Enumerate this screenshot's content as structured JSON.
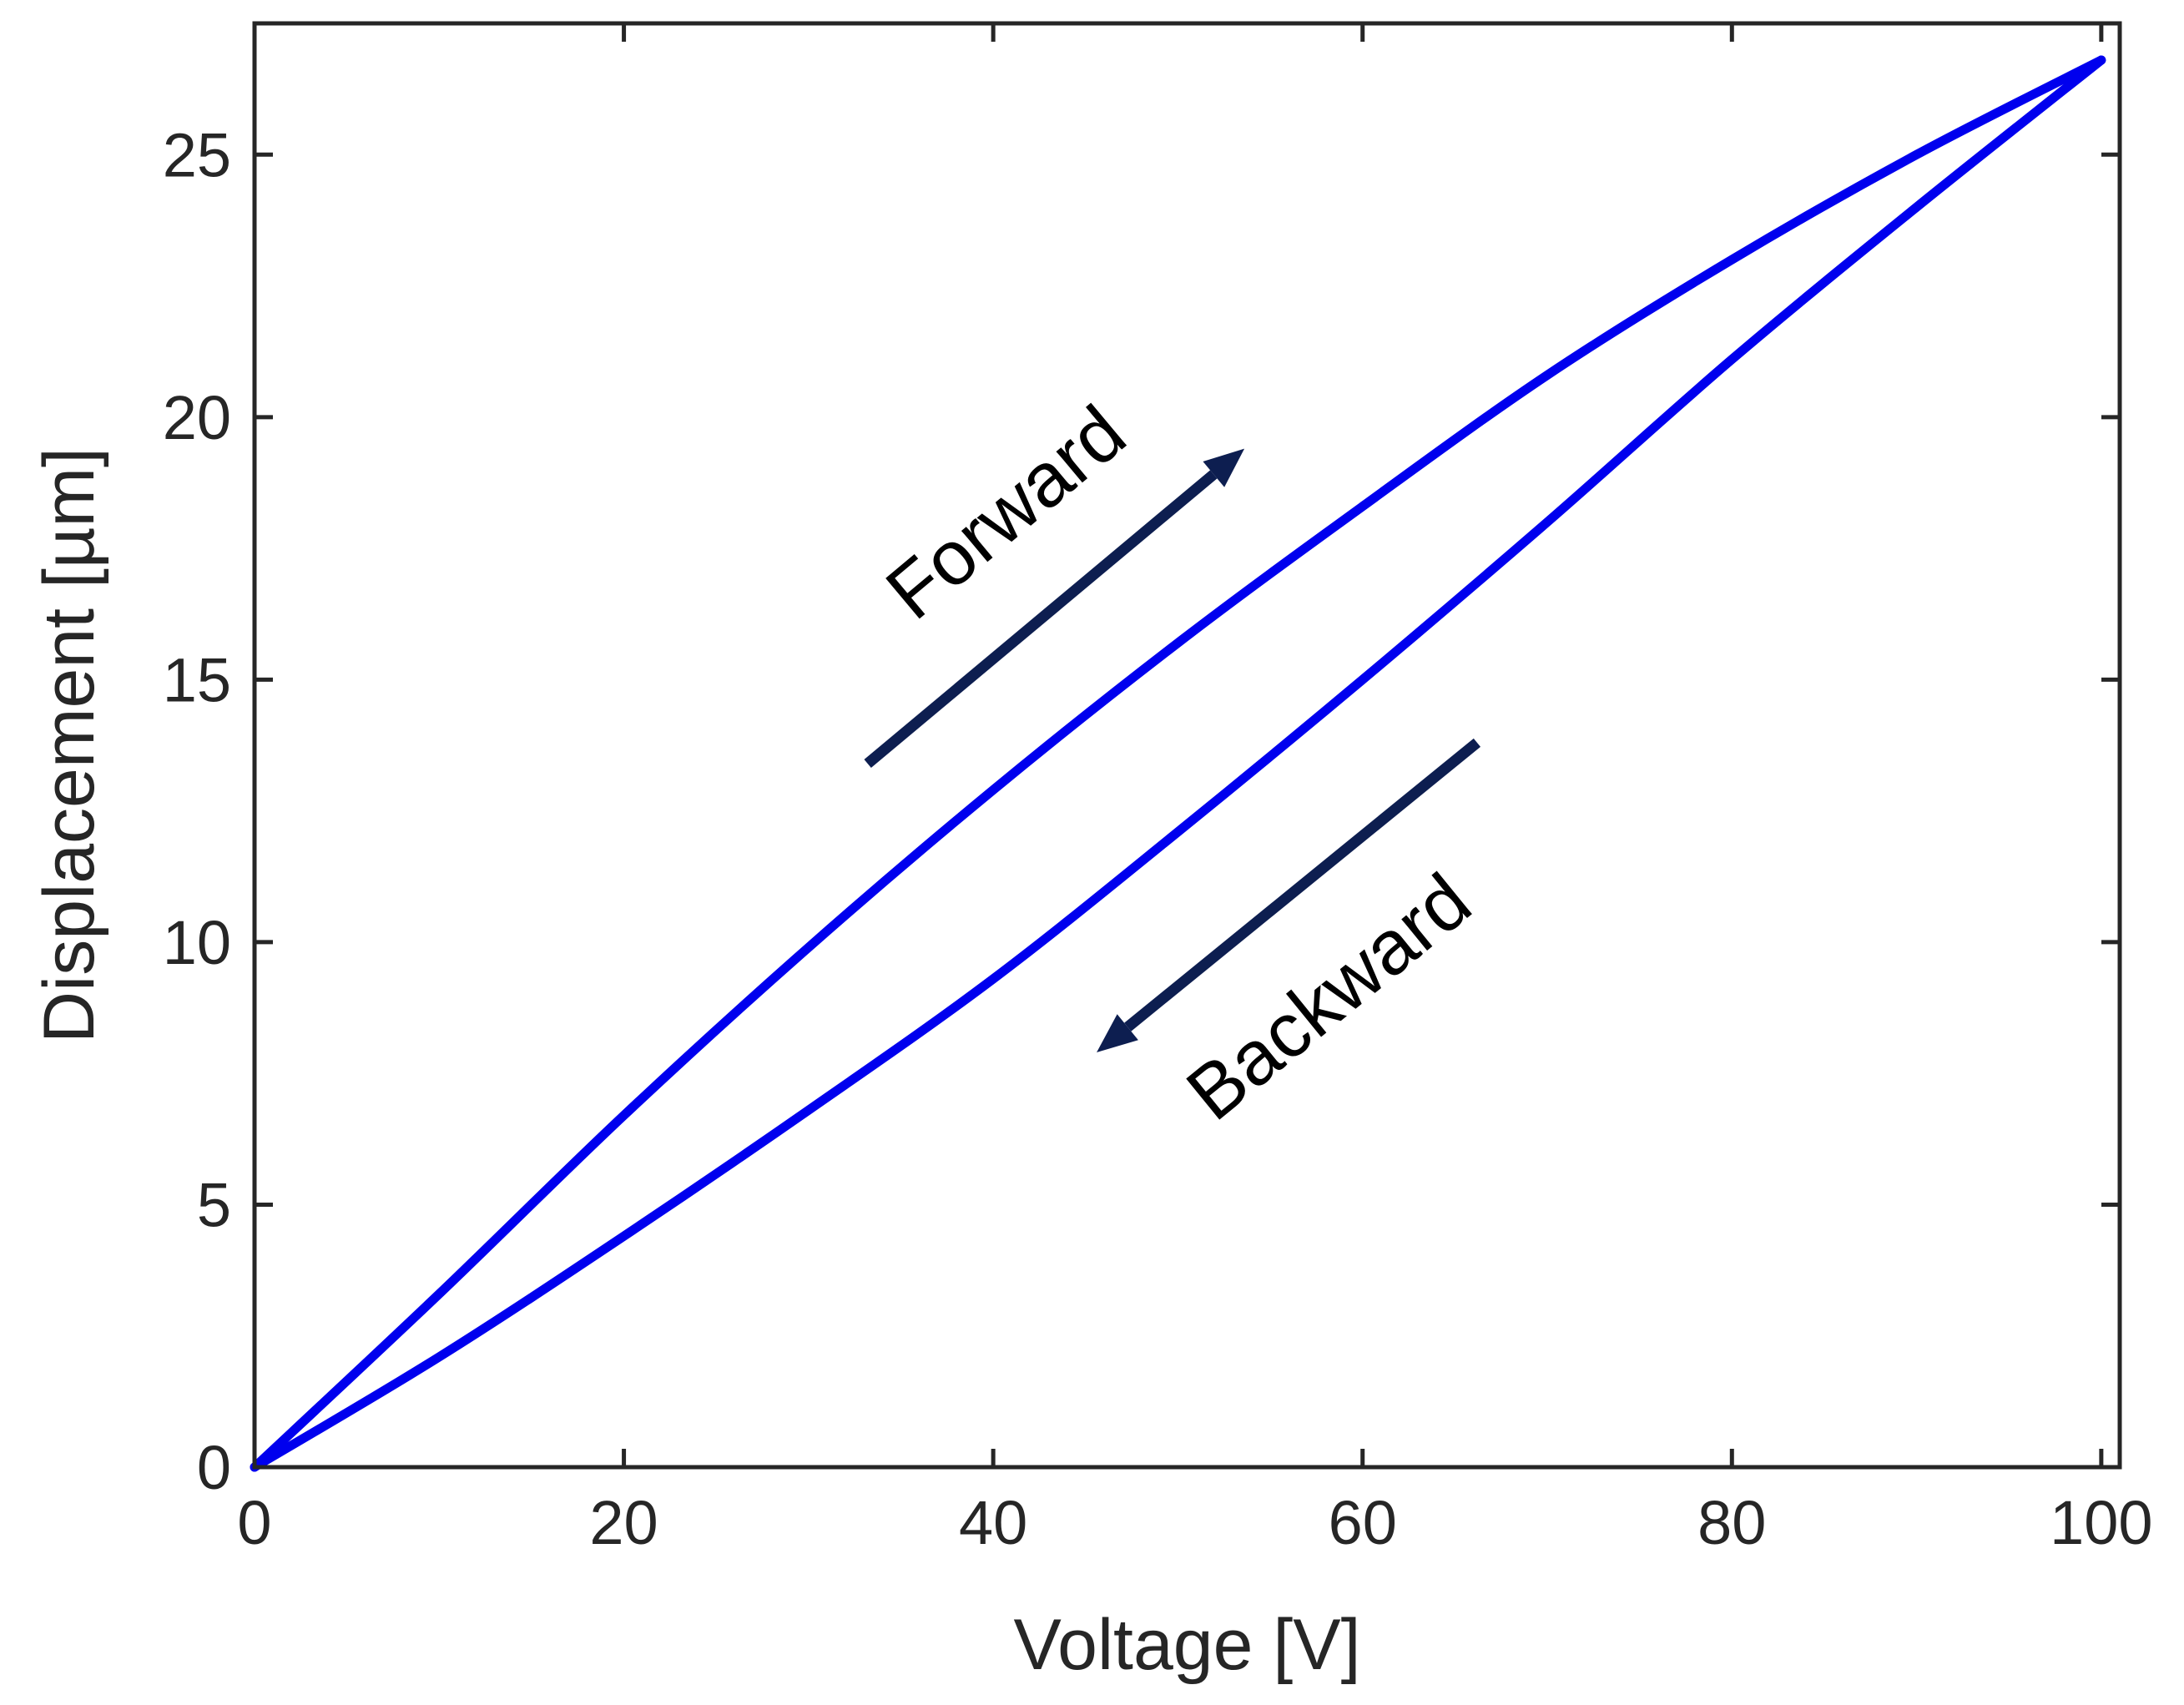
{
  "chart_data": {
    "type": "line",
    "title": "",
    "xlabel": "Voltage [V]",
    "ylabel": "Displacement [µm]",
    "xlim": [
      0,
      101
    ],
    "ylim": [
      0,
      27.5
    ],
    "xticks": [
      0,
      20,
      40,
      60,
      80,
      100
    ],
    "yticks": [
      0,
      5,
      10,
      15,
      20,
      25
    ],
    "grid": false,
    "legend": "none",
    "line_color": "#0000ee",
    "annotation_color": "#0d1e50",
    "series": [
      {
        "x": [
          0,
          10,
          20,
          30,
          40,
          50,
          60,
          70,
          80,
          90,
          100
        ],
        "y": [
          0,
          3.3,
          6.7,
          9.9,
          12.9,
          15.7,
          18.3,
          20.8,
          23.0,
          25.0,
          26.8
        ]
      },
      {
        "x": [
          100,
          90,
          80,
          70,
          60,
          50,
          40,
          30,
          20,
          10,
          0
        ],
        "y": [
          26.8,
          24.0,
          21.1,
          18.0,
          15.0,
          12.1,
          9.3,
          6.8,
          4.4,
          2.1,
          0
        ]
      }
    ],
    "annotations": [
      {
        "text": "Forward",
        "arrow_from": [
          33.2,
          13.4
        ],
        "arrow_to": [
          53.6,
          19.4
        ]
      },
      {
        "text": "Backward",
        "arrow_from": [
          66.2,
          13.8
        ],
        "arrow_to": [
          45.6,
          7.9
        ]
      }
    ]
  }
}
